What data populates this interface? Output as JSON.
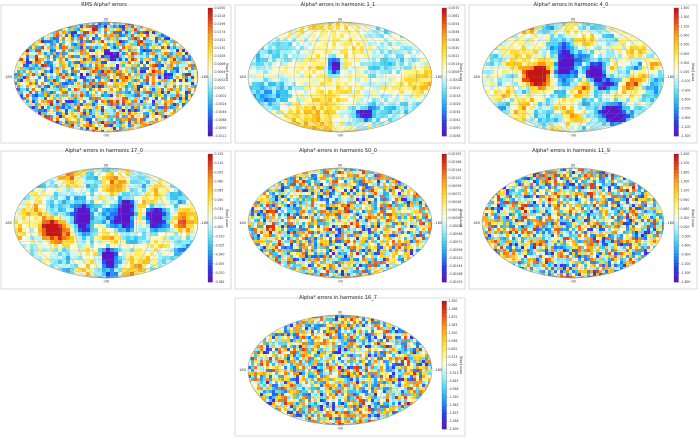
{
  "panels": [
    {
      "id": "p1",
      "title": "RMS Alpha* errors",
      "colorbar_label": "error [deg]",
      "colorbar_ticks": [
        "0.0240",
        "0.0218",
        "0.0196",
        "0.0174",
        "0.0152",
        "0.0130",
        "0.0108",
        "0.0086",
        "0.0064",
        "0.0042",
        "0.0020",
        "-0.0002",
        "-0.0024",
        "-0.0046",
        "-0.0068",
        "-0.0090",
        "-0.0112"
      ],
      "variant": "speckle",
      "axis_labels": {
        "top": "90",
        "bottom": "-90",
        "left": "180",
        "right": "-180"
      },
      "blobs": [
        {
          "u": 0.52,
          "v": 0.3,
          "rx": 0.03,
          "ry": 0.055,
          "val": -1.0
        }
      ]
    },
    {
      "id": "p2",
      "title": "Alpha* errors in harmonic 1_1",
      "colorbar_label": "error [deg]",
      "colorbar_ticks": [
        "0.0070",
        "0.0062",
        "0.0054",
        "0.0046",
        "0.0038",
        "0.0030",
        "0.0022",
        "0.0014",
        "0.0006",
        "-0.0002",
        "-0.0010",
        "-0.0018",
        "-0.0026",
        "-0.0034",
        "-0.0042",
        "-0.0050",
        "-0.0058"
      ],
      "variant": "smooth",
      "axis_labels": {
        "top": "90",
        "bottom": "-90",
        "left": "180",
        "right": "-180"
      },
      "blobs": [
        {
          "u": 0.46,
          "v": 0.38,
          "rx": 0.035,
          "ry": 0.075,
          "val": -1.0
        },
        {
          "u": 0.62,
          "v": 0.82,
          "rx": 0.05,
          "ry": 0.05,
          "val": -0.5
        }
      ]
    },
    {
      "id": "p3",
      "title": "Alpha* errors in harmonic 4_0",
      "colorbar_label": "error [deg]",
      "colorbar_ticks": [
        "1.500",
        "1.300",
        "1.100",
        "0.900",
        "0.700",
        "0.500",
        "0.300",
        "0.100",
        "-0.100",
        "-0.300",
        "-0.500",
        "-0.700",
        "-0.900",
        "-1.100",
        "-1.300"
      ],
      "variant": "blobby",
      "axis_labels": {
        "top": "90",
        "bottom": "-90",
        "left": "180",
        "right": "-180"
      },
      "blobs": [
        {
          "u": 0.45,
          "v": 0.35,
          "rx": 0.06,
          "ry": 0.13,
          "val": -1.0
        },
        {
          "u": 0.62,
          "v": 0.45,
          "rx": 0.05,
          "ry": 0.1,
          "val": -0.9
        },
        {
          "u": 0.72,
          "v": 0.82,
          "rx": 0.06,
          "ry": 0.1,
          "val": -1.0
        },
        {
          "u": 0.3,
          "v": 0.45,
          "rx": 0.07,
          "ry": 0.12,
          "val": 0.9
        }
      ]
    },
    {
      "id": "p4",
      "title": "Alpha* errors in harmonic 17_0",
      "colorbar_label": "error [deg]",
      "colorbar_ticks": [
        "0.125",
        "0.110",
        "0.095",
        "0.080",
        "0.065",
        "0.050",
        "0.035",
        "0.020",
        "0.005",
        "-0.010",
        "-0.025",
        "-0.040",
        "-0.055",
        "-0.070",
        "-0.085"
      ],
      "variant": "blobby",
      "axis_labels": {
        "top": "90",
        "bottom": "-90",
        "left": "180",
        "right": "-180"
      },
      "blobs": [
        {
          "u": 0.36,
          "v": 0.42,
          "rx": 0.05,
          "ry": 0.12,
          "val": -1.0
        },
        {
          "u": 0.6,
          "v": 0.4,
          "rx": 0.05,
          "ry": 0.12,
          "val": -1.0
        },
        {
          "u": 0.75,
          "v": 0.42,
          "rx": 0.04,
          "ry": 0.1,
          "val": -0.9
        },
        {
          "u": 0.5,
          "v": 0.78,
          "rx": 0.04,
          "ry": 0.08,
          "val": -1.0
        },
        {
          "u": 0.18,
          "v": 0.55,
          "rx": 0.06,
          "ry": 0.1,
          "val": 0.9
        }
      ]
    },
    {
      "id": "p5",
      "title": "Alpha* errors in harmonic 50_0",
      "colorbar_label": "error [deg]",
      "colorbar_ticks": [
        "0.00192",
        "0.00168",
        "0.00144",
        "0.00120",
        "0.00096",
        "0.00072",
        "0.00048",
        "0.00024",
        "0.00000",
        "-0.00024",
        "-0.00048",
        "-0.00072",
        "-0.00096",
        "-0.00120",
        "-0.00144",
        "-0.00168",
        "-0.00192"
      ],
      "variant": "speckle",
      "axis_labels": {
        "top": "90",
        "bottom": "-90",
        "left": "180",
        "right": "-180"
      },
      "blobs": []
    },
    {
      "id": "p6",
      "title": "Alpha* errors in harmonic 11_9",
      "colorbar_label": "error [deg]",
      "colorbar_ticks": [
        "2.400",
        "2.100",
        "1.800",
        "1.500",
        "1.200",
        "0.900",
        "0.600",
        "0.300",
        "0.000",
        "-0.300",
        "-0.600",
        "-0.900",
        "-1.200",
        "-1.500",
        "-1.800"
      ],
      "variant": "speckle",
      "axis_labels": {
        "top": "90",
        "bottom": "-90",
        "left": "180",
        "right": "-180"
      },
      "blobs": []
    },
    {
      "id": "p7",
      "title": "Alpha* errors in harmonic 16_7",
      "colorbar_label": "error [deg]",
      "colorbar_ticks": [
        "2.500",
        "2.188",
        "1.875",
        "1.563",
        "1.250",
        "0.938",
        "0.625",
        "0.313",
        "0.000",
        "-0.313",
        "-0.625",
        "-0.938",
        "-1.250",
        "-1.563",
        "-1.875",
        "-2.188",
        "-2.500"
      ],
      "variant": "speckle",
      "axis_labels": {
        "top": "90",
        "bottom": "-90",
        "left": "180",
        "right": "-180"
      },
      "blobs": []
    }
  ],
  "colormap": [
    "#5b14c8",
    "#2a3cf0",
    "#1e90ff",
    "#3fd0f0",
    "#9ef0ff",
    "#fbfbe6",
    "#fff176",
    "#ffd21e",
    "#ff9a14",
    "#f24a14",
    "#c81414"
  ],
  "chart_data": [
    {
      "type": "heatmap",
      "title": "RMS Alpha* errors",
      "projection": "aitoff",
      "colorbar_label": "error [deg]",
      "clim": [
        -0.0112,
        0.024
      ]
    },
    {
      "type": "heatmap",
      "title": "Alpha* errors in harmonic 1_1",
      "projection": "aitoff",
      "colorbar_label": "error [deg]",
      "clim": [
        -0.0058,
        0.007
      ]
    },
    {
      "type": "heatmap",
      "title": "Alpha* errors in harmonic 4_0",
      "projection": "aitoff",
      "colorbar_label": "error [deg]",
      "clim": [
        -1.3,
        1.5
      ]
    },
    {
      "type": "heatmap",
      "title": "Alpha* errors in harmonic 17_0",
      "projection": "aitoff",
      "colorbar_label": "error [deg]",
      "clim": [
        -0.085,
        0.125
      ]
    },
    {
      "type": "heatmap",
      "title": "Alpha* errors in harmonic 50_0",
      "projection": "aitoff",
      "colorbar_label": "error [deg]",
      "clim": [
        -0.00192,
        0.00192
      ]
    },
    {
      "type": "heatmap",
      "title": "Alpha* errors in harmonic 11_9",
      "projection": "aitoff",
      "colorbar_label": "error [deg]",
      "clim": [
        -1.8,
        2.4
      ]
    },
    {
      "type": "heatmap",
      "title": "Alpha* errors in harmonic 16_7",
      "projection": "aitoff",
      "colorbar_label": "error [deg]",
      "clim": [
        -2.5,
        2.5
      ]
    }
  ]
}
